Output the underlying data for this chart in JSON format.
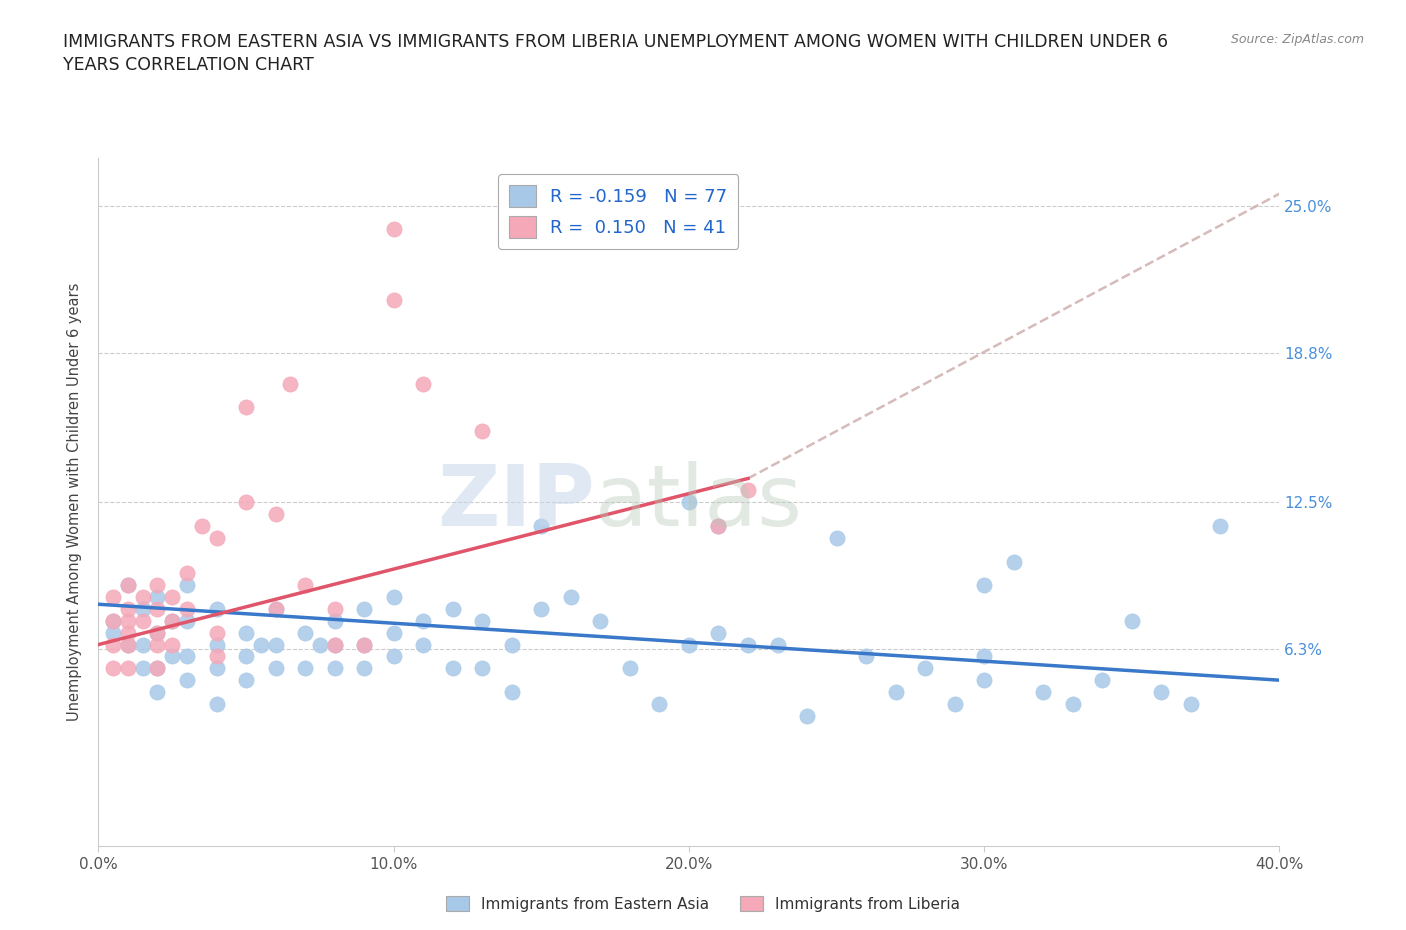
{
  "title": "IMMIGRANTS FROM EASTERN ASIA VS IMMIGRANTS FROM LIBERIA UNEMPLOYMENT AMONG WOMEN WITH CHILDREN UNDER 6\nYEARS CORRELATION CHART",
  "source_text": "Source: ZipAtlas.com",
  "ylabel": "Unemployment Among Women with Children Under 6 years",
  "xlim": [
    0.0,
    0.4
  ],
  "ylim": [
    -0.02,
    0.27
  ],
  "yticks": [
    0.063,
    0.125,
    0.188,
    0.25
  ],
  "ytick_labels": [
    "6.3%",
    "12.5%",
    "18.8%",
    "25.0%"
  ],
  "xticks": [
    0.0,
    0.1,
    0.2,
    0.3,
    0.4
  ],
  "xtick_labels": [
    "0.0%",
    "10.0%",
    "20.0%",
    "30.0%",
    "40.0%"
  ],
  "color_blue": "#a8c8e8",
  "color_pink": "#f4a8b8",
  "color_blue_line": "#3a78c9",
  "color_pink_line": "#e0556a",
  "color_gray_line": "#ccaaaa",
  "legend_r_blue": "-0.159",
  "legend_n_blue": "77",
  "legend_r_pink": "0.150",
  "legend_n_pink": "41",
  "legend_label_blue": "Immigrants from Eastern Asia",
  "legend_label_pink": "Immigrants from Liberia",
  "watermark_zip": "ZIP",
  "watermark_atlas": "atlas",
  "blue_scatter_x": [
    0.005,
    0.005,
    0.01,
    0.01,
    0.015,
    0.015,
    0.015,
    0.02,
    0.02,
    0.02,
    0.02,
    0.025,
    0.025,
    0.03,
    0.03,
    0.03,
    0.03,
    0.04,
    0.04,
    0.04,
    0.04,
    0.05,
    0.05,
    0.05,
    0.055,
    0.06,
    0.06,
    0.06,
    0.07,
    0.07,
    0.075,
    0.08,
    0.08,
    0.08,
    0.09,
    0.09,
    0.09,
    0.1,
    0.1,
    0.1,
    0.11,
    0.11,
    0.12,
    0.12,
    0.13,
    0.13,
    0.14,
    0.14,
    0.15,
    0.15,
    0.16,
    0.17,
    0.18,
    0.19,
    0.2,
    0.2,
    0.21,
    0.21,
    0.22,
    0.23,
    0.24,
    0.25,
    0.26,
    0.27,
    0.28,
    0.29,
    0.3,
    0.3,
    0.3,
    0.31,
    0.32,
    0.33,
    0.34,
    0.35,
    0.36,
    0.37,
    0.38
  ],
  "blue_scatter_y": [
    0.075,
    0.07,
    0.09,
    0.065,
    0.08,
    0.065,
    0.055,
    0.085,
    0.07,
    0.055,
    0.045,
    0.075,
    0.06,
    0.09,
    0.075,
    0.06,
    0.05,
    0.08,
    0.065,
    0.055,
    0.04,
    0.07,
    0.06,
    0.05,
    0.065,
    0.08,
    0.065,
    0.055,
    0.07,
    0.055,
    0.065,
    0.075,
    0.065,
    0.055,
    0.08,
    0.065,
    0.055,
    0.085,
    0.07,
    0.06,
    0.075,
    0.065,
    0.08,
    0.055,
    0.075,
    0.055,
    0.065,
    0.045,
    0.115,
    0.08,
    0.085,
    0.075,
    0.055,
    0.04,
    0.125,
    0.065,
    0.115,
    0.07,
    0.065,
    0.065,
    0.035,
    0.11,
    0.06,
    0.045,
    0.055,
    0.04,
    0.09,
    0.06,
    0.05,
    0.1,
    0.045,
    0.04,
    0.05,
    0.075,
    0.045,
    0.04,
    0.115
  ],
  "pink_scatter_x": [
    0.005,
    0.005,
    0.005,
    0.005,
    0.01,
    0.01,
    0.01,
    0.01,
    0.01,
    0.01,
    0.015,
    0.015,
    0.02,
    0.02,
    0.02,
    0.02,
    0.02,
    0.025,
    0.025,
    0.025,
    0.03,
    0.03,
    0.035,
    0.04,
    0.04,
    0.04,
    0.05,
    0.05,
    0.06,
    0.06,
    0.065,
    0.07,
    0.08,
    0.08,
    0.09,
    0.1,
    0.1,
    0.11,
    0.13,
    0.21,
    0.22
  ],
  "pink_scatter_y": [
    0.085,
    0.075,
    0.065,
    0.055,
    0.09,
    0.08,
    0.075,
    0.065,
    0.055,
    0.07,
    0.085,
    0.075,
    0.09,
    0.08,
    0.07,
    0.065,
    0.055,
    0.085,
    0.075,
    0.065,
    0.095,
    0.08,
    0.115,
    0.11,
    0.07,
    0.06,
    0.165,
    0.125,
    0.12,
    0.08,
    0.175,
    0.09,
    0.08,
    0.065,
    0.065,
    0.24,
    0.21,
    0.175,
    0.155,
    0.115,
    0.13
  ],
  "blue_line_x0": 0.0,
  "blue_line_x1": 0.4,
  "blue_line_y0": 0.082,
  "blue_line_y1": 0.05,
  "pink_line_x0": 0.0,
  "pink_line_x1": 0.22,
  "pink_line_y0": 0.065,
  "pink_line_y1": 0.135,
  "gray_line_x0": 0.22,
  "gray_line_x1": 0.4,
  "gray_line_y0": 0.135,
  "gray_line_y1": 0.255
}
